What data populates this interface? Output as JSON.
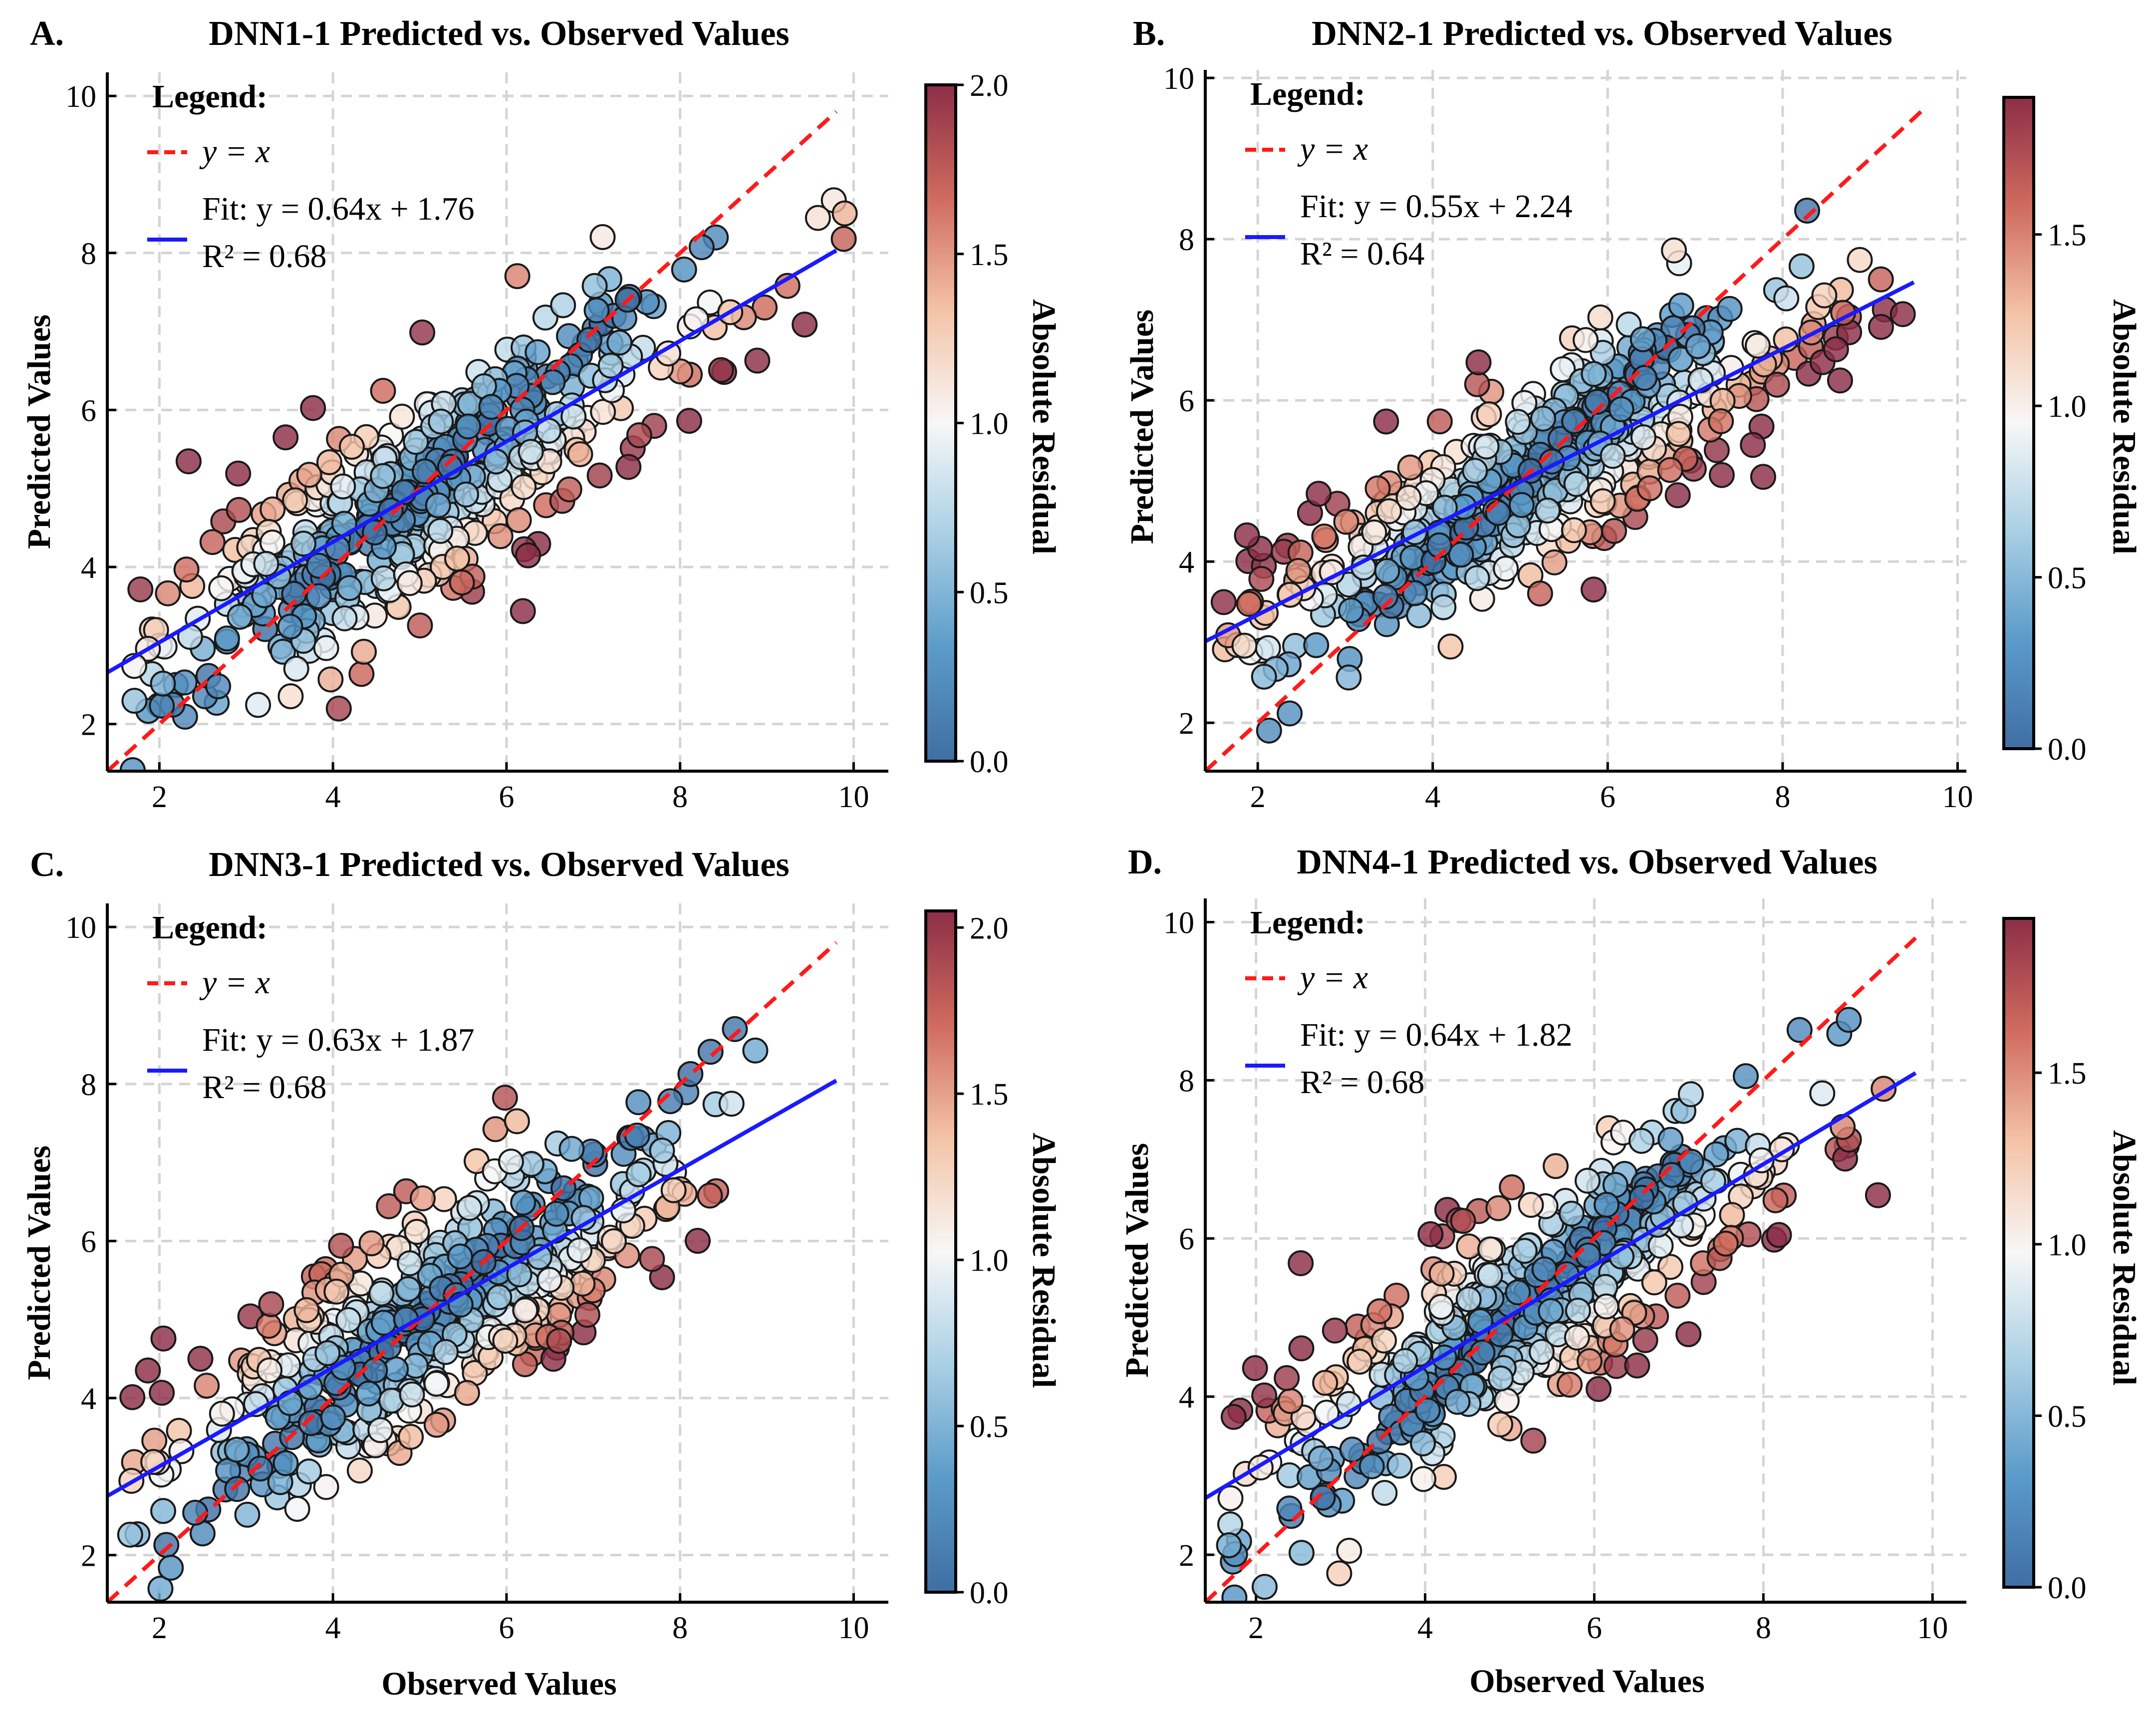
{
  "figure": {
    "xlabel": "Observed Values",
    "ylabel": "Predicted Values",
    "colorbar_label": "Absolute Residual"
  },
  "colors": {
    "identity_line": "#ff1a1a",
    "fit_line": "#1a1aff",
    "colormap": [
      "#3f6ea3",
      "#5b9bc9",
      "#a9cfe4",
      "#f7f7f7",
      "#f4c3a6",
      "#cf6b5e",
      "#8c2e47"
    ],
    "grid": "#d4d4d4"
  },
  "chart_data": [
    {
      "type": "scatter",
      "panel_label": "A.",
      "title": "DNN1-1 Predicted vs. Observed Values",
      "xlabel": "",
      "ylabel": "Predicted Values",
      "xlim": [
        1.4,
        10.4
      ],
      "ylim": [
        1.4,
        10.3
      ],
      "xticks": [
        "2",
        "4",
        "6",
        "8",
        "10"
      ],
      "yticks": [
        "2",
        "4",
        "6",
        "8",
        "10"
      ],
      "legend": {
        "heading": "Legend:",
        "identity": "y = x",
        "fit": "Fit: y = 0.64x + 1.76",
        "r2": "R² = 0.68"
      },
      "fit": {
        "slope": 0.64,
        "intercept": 1.76
      },
      "colorbar": {
        "min": 0.0,
        "max": 2.0,
        "ticks": [
          "0.0",
          "0.5",
          "1.0",
          "1.5",
          "2.0"
        ],
        "label": "Absolute Residual"
      },
      "n_points": 500,
      "seed": 11,
      "noise": 0.72
    },
    {
      "type": "scatter",
      "panel_label": "B.",
      "title": "DNN2-1 Predicted vs. Observed Values",
      "xlabel": "",
      "ylabel": "Predicted Values",
      "xlim": [
        1.4,
        10.1
      ],
      "ylim": [
        1.4,
        10.1
      ],
      "xticks": [
        "2",
        "4",
        "6",
        "8",
        "10"
      ],
      "yticks": [
        "2",
        "4",
        "6",
        "8",
        "10"
      ],
      "legend": {
        "heading": "Legend:",
        "identity": "y = x",
        "fit": "Fit: y = 0.55x + 2.24",
        "r2": "R² = 0.64"
      },
      "fit": {
        "slope": 0.55,
        "intercept": 2.24
      },
      "colorbar": {
        "min": 0.0,
        "max": 1.9,
        "ticks": [
          "0.0",
          "0.5",
          "1.0",
          "1.5"
        ],
        "label": "Absolute Residual"
      },
      "n_points": 500,
      "seed": 23,
      "noise": 0.6
    },
    {
      "type": "scatter",
      "panel_label": "C.",
      "title": "DNN3-1 Predicted vs. Observed Values",
      "xlabel": "Observed Values",
      "ylabel": "Predicted Values",
      "xlim": [
        1.4,
        10.4
      ],
      "ylim": [
        1.4,
        10.3
      ],
      "xticks": [
        "2",
        "4",
        "6",
        "8",
        "10"
      ],
      "yticks": [
        "2",
        "4",
        "6",
        "8",
        "10"
      ],
      "legend": {
        "heading": "Legend:",
        "identity": "y = x",
        "fit": "Fit: y = 0.63x + 1.87",
        "r2": "R² = 0.68"
      },
      "fit": {
        "slope": 0.63,
        "intercept": 1.87
      },
      "colorbar": {
        "min": 0.0,
        "max": 2.05,
        "ticks": [
          "0.0",
          "0.5",
          "1.0",
          "1.5",
          "2.0"
        ],
        "label": "Absolute Residual"
      },
      "n_points": 500,
      "seed": 37,
      "noise": 0.72
    },
    {
      "type": "scatter",
      "panel_label": "D.",
      "title": "DNN4-1 Predicted vs. Observed Values",
      "xlabel": "Observed Values",
      "ylabel": "Predicted Values",
      "xlim": [
        1.4,
        10.4
      ],
      "ylim": [
        1.4,
        10.3
      ],
      "xticks": [
        "2",
        "4",
        "6",
        "8",
        "10"
      ],
      "yticks": [
        "2",
        "4",
        "6",
        "8",
        "10"
      ],
      "legend": {
        "heading": "Legend:",
        "identity": "y = x",
        "fit": "Fit: y = 0.64x + 1.82",
        "r2": "R² = 0.68"
      },
      "fit": {
        "slope": 0.64,
        "intercept": 1.82
      },
      "colorbar": {
        "min": 0.0,
        "max": 1.95,
        "ticks": [
          "0.0",
          "0.5",
          "1.0",
          "1.5"
        ],
        "label": "Absolute Residual"
      },
      "n_points": 500,
      "seed": 53,
      "noise": 0.72
    }
  ]
}
